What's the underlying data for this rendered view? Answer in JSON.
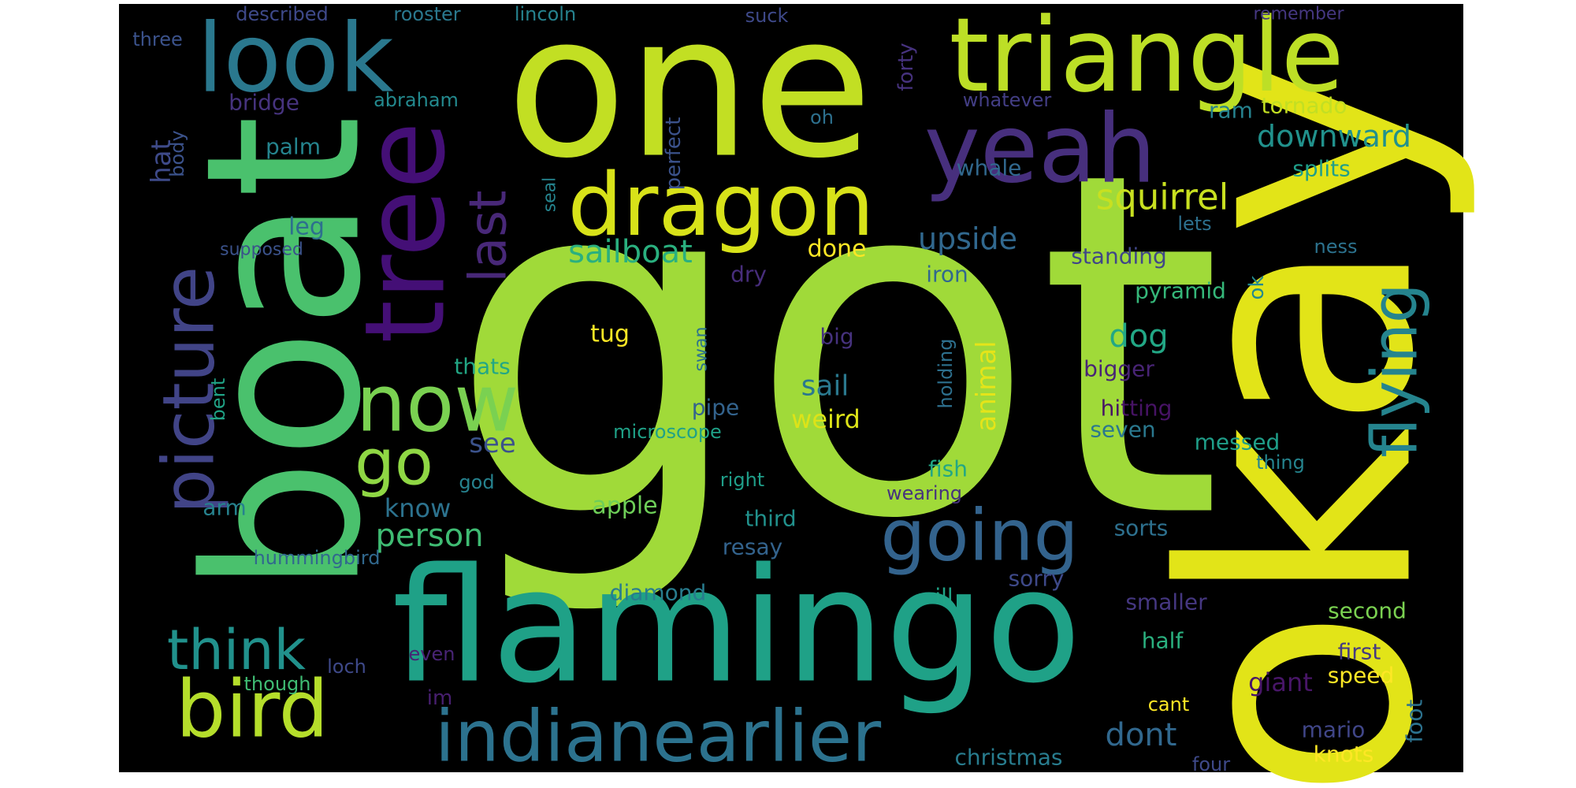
{
  "colors": {
    "background": "#000000",
    "page": "#ffffff"
  },
  "words": [
    {
      "text": "got",
      "color": "#a0da39"
    },
    {
      "text": "okay",
      "color": "#e2e418"
    },
    {
      "text": "one",
      "color": "#c2df23"
    },
    {
      "text": "boat",
      "color": "#4ac16d"
    },
    {
      "text": "flamingo",
      "color": "#1fa187"
    },
    {
      "text": "triangle",
      "color": "#bddf26"
    },
    {
      "text": "look",
      "color": "#2a788e"
    },
    {
      "text": "yeah",
      "color": "#472f7d"
    },
    {
      "text": "tree",
      "color": "#440f76"
    },
    {
      "text": "dragon",
      "color": "#d8e219"
    },
    {
      "text": "picture",
      "color": "#414487"
    },
    {
      "text": "now",
      "color": "#7ad151"
    },
    {
      "text": "going",
      "color": "#33638d"
    },
    {
      "text": "indianearlier",
      "color": "#2c728e"
    },
    {
      "text": "bird",
      "color": "#b5de2b"
    },
    {
      "text": "flying",
      "color": "#25848e"
    },
    {
      "text": "think",
      "color": "#21918c"
    },
    {
      "text": "go",
      "color": "#8fd744"
    },
    {
      "text": "last",
      "color": "#482878"
    },
    {
      "text": "squirrel",
      "color": "#c8e020"
    },
    {
      "text": "sailboat",
      "color": "#2ab07f"
    },
    {
      "text": "downward",
      "color": "#21918c"
    },
    {
      "text": "upside",
      "color": "#31688e"
    },
    {
      "text": "person",
      "color": "#3fbc73"
    },
    {
      "text": "dog",
      "color": "#22a785"
    },
    {
      "text": "sail",
      "color": "#2a788e"
    },
    {
      "text": "dont",
      "color": "#31688e"
    },
    {
      "text": "animal",
      "color": "#e5e419"
    },
    {
      "text": "know",
      "color": "#2c728e"
    },
    {
      "text": "see",
      "color": "#3b528b"
    },
    {
      "text": "apple",
      "color": "#6ece58"
    },
    {
      "text": "weird",
      "color": "#dde318"
    },
    {
      "text": "tug",
      "color": "#fde725"
    },
    {
      "text": "done",
      "color": "#fde725"
    },
    {
      "text": "leg",
      "color": "#2d708e"
    },
    {
      "text": "hat",
      "color": "#3e4a89"
    },
    {
      "text": "bridge",
      "color": "#46337e"
    },
    {
      "text": "palm",
      "color": "#25848e"
    },
    {
      "text": "body",
      "color": "#3b528b"
    },
    {
      "text": "arm",
      "color": "#26828e"
    },
    {
      "text": "tornado",
      "color": "#c2df23"
    },
    {
      "text": "ram",
      "color": "#26828e"
    },
    {
      "text": "splits",
      "color": "#1f9e89"
    },
    {
      "text": "perfect",
      "color": "#3b528b"
    },
    {
      "text": "forty",
      "color": "#46327e"
    },
    {
      "text": "standing",
      "color": "#404688"
    },
    {
      "text": "pyramid",
      "color": "#35b779"
    },
    {
      "text": "ok",
      "color": "#23898e"
    },
    {
      "text": "bigger",
      "color": "#482475"
    },
    {
      "text": "hitting",
      "color": "#471365"
    },
    {
      "text": "seven",
      "color": "#2a788e"
    },
    {
      "text": "messed",
      "color": "#1f9e89"
    },
    {
      "text": "fish",
      "color": "#22a785"
    },
    {
      "text": "third",
      "color": "#21918c"
    },
    {
      "text": "resay",
      "color": "#33638d"
    },
    {
      "text": "sorts",
      "color": "#2d708e"
    },
    {
      "text": "sorry",
      "color": "#3e4989"
    },
    {
      "text": "diamond",
      "color": "#287c8e"
    },
    {
      "text": "ill",
      "color": "#20a386"
    },
    {
      "text": "smaller",
      "color": "#453781"
    },
    {
      "text": "second",
      "color": "#7ad151"
    },
    {
      "text": "half",
      "color": "#2ab07f"
    },
    {
      "text": "first",
      "color": "#443983"
    },
    {
      "text": "giant",
      "color": "#481668"
    },
    {
      "text": "speed",
      "color": "#fde725"
    },
    {
      "text": "cant",
      "color": "#fde725"
    },
    {
      "text": "foot",
      "color": "#2c728e"
    },
    {
      "text": "mario",
      "color": "#404688"
    },
    {
      "text": "knots",
      "color": "#fde725"
    },
    {
      "text": "christmas",
      "color": "#287c8e"
    },
    {
      "text": "four",
      "color": "#3e4989"
    },
    {
      "text": "im",
      "color": "#481f70"
    },
    {
      "text": "even",
      "color": "#482475"
    },
    {
      "text": "though",
      "color": "#3fbc73"
    },
    {
      "text": "loch",
      "color": "#3e4989"
    },
    {
      "text": "hummingbird",
      "color": "#31688e"
    },
    {
      "text": "god",
      "color": "#26828e"
    },
    {
      "text": "right",
      "color": "#1f9e89"
    },
    {
      "text": "wearing",
      "color": "#46327e"
    },
    {
      "text": "thing",
      "color": "#25848e"
    },
    {
      "text": "microscope",
      "color": "#1fa187"
    },
    {
      "text": "pipe",
      "color": "#33638d"
    },
    {
      "text": "big",
      "color": "#46327e"
    },
    {
      "text": "holding",
      "color": "#2d708e"
    },
    {
      "text": "iron",
      "color": "#31688e"
    },
    {
      "text": "dry",
      "color": "#472d7b"
    },
    {
      "text": "whale",
      "color": "#31688e"
    },
    {
      "text": "lets",
      "color": "#2d708e"
    },
    {
      "text": "ness",
      "color": "#2c728e"
    },
    {
      "text": "seal",
      "color": "#25848e"
    },
    {
      "text": "swan",
      "color": "#2c728e"
    },
    {
      "text": "oh",
      "color": "#2d708e"
    },
    {
      "text": "whatever",
      "color": "#433e85"
    },
    {
      "text": "abraham",
      "color": "#23898e"
    },
    {
      "text": "supposed",
      "color": "#3b528b"
    },
    {
      "text": "bent",
      "color": "#20a386"
    },
    {
      "text": "thats",
      "color": "#22a785"
    },
    {
      "text": "described",
      "color": "#3e4989"
    },
    {
      "text": "rooster",
      "color": "#2a788e"
    },
    {
      "text": "lincoln",
      "color": "#26828e"
    },
    {
      "text": "suck",
      "color": "#3e4989"
    },
    {
      "text": "remember",
      "color": "#453781"
    },
    {
      "text": "three",
      "color": "#3b528b"
    }
  ]
}
